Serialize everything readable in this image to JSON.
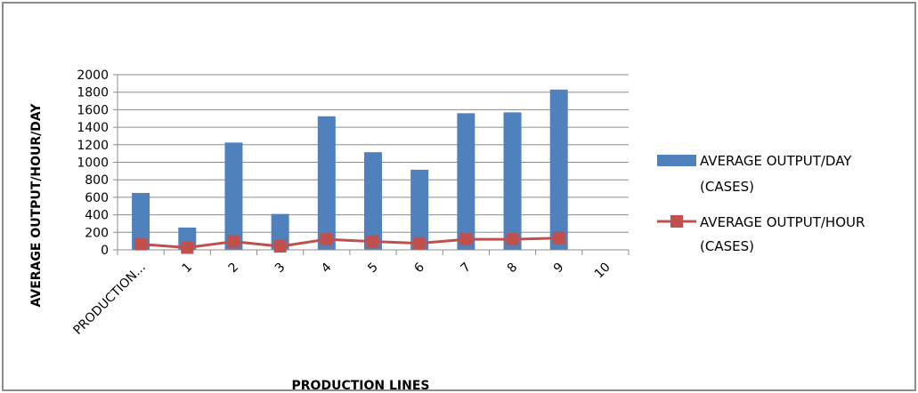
{
  "chart_data": {
    "type": "bar",
    "categories": [
      "PRODUCTION...",
      "1",
      "2",
      "3",
      "4",
      "5",
      "6",
      "7",
      "8",
      "9",
      "10"
    ],
    "series": [
      {
        "name": "AVERAGE OUTPUT/DAY (CASES)",
        "type": "bar",
        "color": "#4f81bd",
        "values": [
          650,
          255,
          1225,
          410,
          1525,
          1115,
          915,
          1560,
          1570,
          1830,
          null
        ]
      },
      {
        "name": "AVERAGE OUTPUT/HOUR (CASES)",
        "type": "line",
        "color": "#c0504d",
        "values": [
          65,
          25,
          95,
          40,
          120,
          95,
          75,
          120,
          120,
          135,
          null
        ]
      }
    ],
    "xlabel": "PRODUCTION LINES",
    "ylabel": "AVERAGE OUTPUT/HOUR/DAY",
    "ylim": [
      0,
      2000
    ],
    "yticks": [
      0,
      200,
      400,
      600,
      800,
      1000,
      1200,
      1400,
      1600,
      1800,
      2000
    ],
    "grid": true,
    "legend": "right",
    "legend_items": [
      {
        "line1": "AVERAGE OUTPUT/DAY",
        "line2": "(CASES)"
      },
      {
        "line1": "AVERAGE OUTPUT/HOUR",
        "line2": "(CASES)"
      }
    ]
  }
}
